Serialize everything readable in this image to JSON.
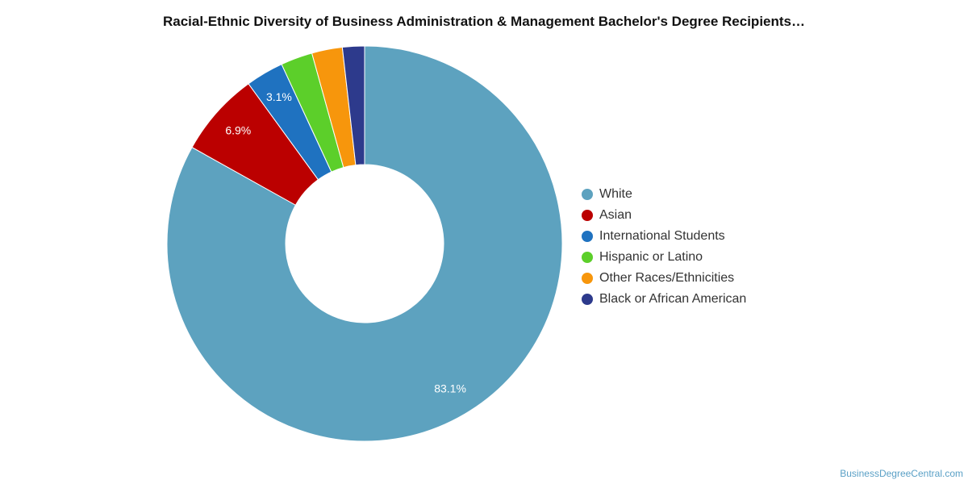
{
  "chart_data": {
    "type": "pie",
    "variant": "donut",
    "title": "Racial-Ethnic Diversity of Business Administration & Management Bachelor's Degree Recipients…",
    "series": [
      {
        "name": "White",
        "value": 83.1,
        "label": "83.1%",
        "color": "#5da2bf"
      },
      {
        "name": "Asian",
        "value": 6.9,
        "label": "6.9%",
        "color": "#bb0000"
      },
      {
        "name": "International Students",
        "value": 3.1,
        "label": "3.1%",
        "color": "#1f72c0"
      },
      {
        "name": "Hispanic or Latino",
        "value": 2.6,
        "label": "",
        "color": "#5ccf2a"
      },
      {
        "name": "Other Races/Ethnicities",
        "value": 2.5,
        "label": "",
        "color": "#f7960c"
      },
      {
        "name": "Black or African American",
        "value": 1.8,
        "label": "",
        "color": "#2d3a8c"
      }
    ],
    "legend_position": "right"
  },
  "credit": "BusinessDegreeCentral.com"
}
